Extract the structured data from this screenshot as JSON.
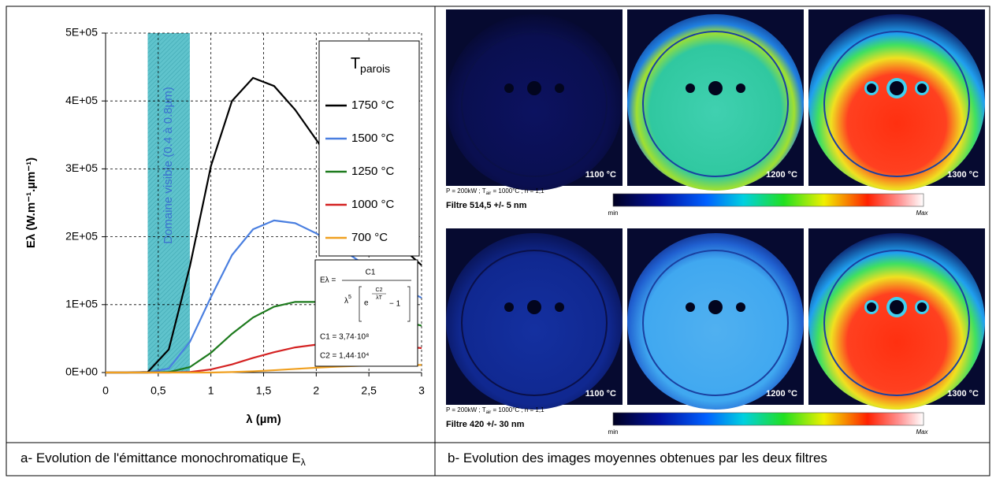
{
  "chart_data": {
    "type": "line",
    "y_label": "Eλ (W.m⁻¹.µm⁻¹)",
    "x_label": "λ (µm)",
    "x": [
      0,
      0.2,
      0.4,
      0.6,
      0.8,
      1.0,
      1.2,
      1.4,
      1.6,
      1.8,
      2.0,
      2.2,
      2.4,
      2.6,
      2.8,
      3.0
    ],
    "series": [
      {
        "name": "1750 °C",
        "color": "#000000",
        "values": [
          0,
          0,
          700,
          34000,
          156000,
          304000,
          400000,
          434000,
          422000,
          387000,
          343000,
          297000,
          255000,
          218000,
          186000,
          158000
        ]
      },
      {
        "name": "1500 °C",
        "color": "#4a7fe0",
        "values": [
          0,
          0,
          0,
          6000,
          45000,
          111000,
          173000,
          211000,
          224000,
          220000,
          205000,
          186000,
          165000,
          145000,
          126000,
          110000
        ]
      },
      {
        "name": "1250 °C",
        "color": "#1d7a1d",
        "values": [
          0,
          0,
          0,
          700,
          8000,
          29000,
          57000,
          81000,
          97000,
          104000,
          104000,
          100000,
          93000,
          85000,
          77000,
          69000
        ]
      },
      {
        "name": "1000 °C",
        "color": "#d42222",
        "values": [
          0,
          0,
          0,
          0,
          800,
          4600,
          12000,
          21500,
          30000,
          37000,
          41000,
          42700,
          42500,
          41000,
          39000,
          36000
        ]
      },
      {
        "name": "700 °C",
        "color": "#f0a020",
        "values": [
          0,
          0,
          0,
          0,
          0,
          0,
          700,
          1800,
          3400,
          5300,
          7100,
          8700,
          9900,
          10600,
          11000,
          11200
        ]
      }
    ],
    "xlim": [
      0,
      3
    ],
    "ylim": [
      0,
      500000
    ],
    "xticks": [
      0,
      {
        "value": 0.5,
        "label": "0,5"
      },
      1,
      {
        "value": 1.5,
        "label": "1,5"
      },
      2,
      {
        "value": 2.5,
        "label": "2,5"
      },
      3
    ],
    "yticks": [
      {
        "value": 0,
        "label": "0E+00"
      },
      {
        "value": 100000,
        "label": "1E+05"
      },
      {
        "value": 200000,
        "label": "2E+05"
      },
      {
        "value": 300000,
        "label": "3E+05"
      },
      {
        "value": 400000,
        "label": "4E+05"
      },
      {
        "value": 500000,
        "label": "5E+05"
      }
    ],
    "grid": true,
    "legend_title": {
      "main": "T",
      "sub": "parois"
    },
    "band": [
      0.4,
      0.8
    ],
    "band_label": "Domaine visible (0.4 à 0.8µm)",
    "formula": {
      "lhs": "Eλ =",
      "num": "C1",
      "den": "λ",
      "den_exp": "5",
      "e": "e",
      "exp_num": "C2",
      "exp_den": "λT",
      "minus": "− 1",
      "c1": "C1 = 3,74·10⁸",
      "c2": "C2 = 1,44·10⁴"
    }
  },
  "panel_b": {
    "rows": [
      {
        "temps": [
          "1100 °C",
          "1200 °C",
          "1300 °C"
        ],
        "cond_a": "P = 200kW ; T",
        "cond_sub": "air",
        "cond_b": " = 1000°C ; n = 1,1",
        "filter": "Filtre 514,5 +/- 5 nm",
        "min": "min",
        "max": "Max"
      },
      {
        "temps": [
          "1100 °C",
          "1200 °C",
          "1300 °C"
        ],
        "cond_a": "P = 200kW ; T",
        "cond_sub": "air",
        "cond_b": " = 1000°C ; n = 1,1",
        "filter": "Filtre 420 +/- 30 nm",
        "min": "min",
        "max": "Max"
      }
    ]
  },
  "captions": [
    {
      "text": "a- Evolution de l'émittance monochromatique E",
      "sub": "λ"
    },
    {
      "text": "b- Evolution des images moyennes obtenues par les deux filtres"
    }
  ]
}
